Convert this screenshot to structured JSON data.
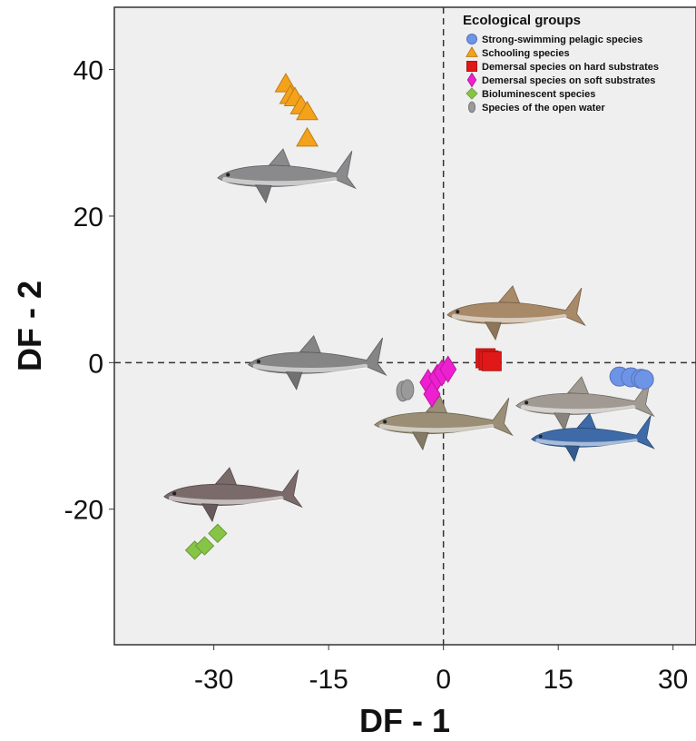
{
  "chart_data": {
    "type": "scatter",
    "xlabel": "DF - 1",
    "ylabel": "DF - 2",
    "xlim": [
      -43,
      33
    ],
    "ylim": [
      -38.5,
      48.5
    ],
    "xticks": [
      -30,
      -15,
      0,
      15,
      30
    ],
    "yticks": [
      40,
      20,
      0,
      -20
    ],
    "reference_lines": {
      "x": 0,
      "y": 0,
      "style": "dashed"
    },
    "grid": false,
    "plot_background": "#efefef",
    "legend": {
      "title": "Ecological groups",
      "placement": "top-right"
    },
    "series": [
      {
        "name": "Strong-swimming pelagic species",
        "marker": "circle",
        "color": "#6e94e8",
        "points": [
          [
            23.0,
            -1.9
          ],
          [
            24.5,
            -2.0
          ],
          [
            25.8,
            -2.2
          ],
          [
            26.2,
            -2.3
          ]
        ]
      },
      {
        "name": "Schooling species",
        "marker": "triangle",
        "color": "#f4a21b",
        "points": [
          [
            -20.6,
            38.0
          ],
          [
            -20.0,
            36.4
          ],
          [
            -19.4,
            36.1
          ],
          [
            -18.6,
            35.0
          ],
          [
            -17.8,
            34.2
          ],
          [
            -17.8,
            30.6
          ]
        ]
      },
      {
        "name": "Demersal species on hard substrates",
        "marker": "square",
        "color": "#e01818",
        "points": [
          [
            5.5,
            0.6
          ],
          [
            5.9,
            0.3
          ],
          [
            6.3,
            0.2
          ]
        ]
      },
      {
        "name": "Demersal species on soft substrates",
        "marker": "diamond",
        "color": "#ee1fd0",
        "points": [
          [
            -2.0,
            -2.7
          ],
          [
            -1.5,
            -4.3
          ],
          [
            -0.8,
            -2.0
          ],
          [
            -0.2,
            -1.4
          ],
          [
            0.6,
            -0.9
          ]
        ]
      },
      {
        "name": "Bioluminescent species",
        "marker": "diamond",
        "color": "#86c446",
        "points": [
          [
            -32.5,
            -25.6
          ],
          [
            -31.2,
            -25.0
          ],
          [
            -29.5,
            -23.3
          ]
        ]
      },
      {
        "name": "Species of the open water",
        "marker": "ellipse",
        "color": "#9a9a9a",
        "points": [
          [
            -5.3,
            -3.9
          ],
          [
            -4.7,
            -3.7
          ]
        ]
      }
    ],
    "illustrations": [
      {
        "name": "shark-illustration-schooling",
        "color": "#8a8a8c",
        "x": -20.5,
        "y": 25.5,
        "length": 18
      },
      {
        "name": "shark-illustration-demersal-hard",
        "color": "#a88a68",
        "x": 9.5,
        "y": 6.8,
        "length": 18
      },
      {
        "name": "shark-illustration-open-water",
        "color": "#858585",
        "x": -16.5,
        "y": 0.0,
        "length": 18
      },
      {
        "name": "shark-illustration-demersal-soft",
        "color": "#9a8e76",
        "x": 0.0,
        "y": -8.2,
        "length": 18
      },
      {
        "name": "shark-illustration-pelagic-grey",
        "color": "#a09a92",
        "x": 18.5,
        "y": -5.6,
        "length": 18
      },
      {
        "name": "shark-illustration-pelagic-blue",
        "color": "#3e6ba8",
        "x": 19.5,
        "y": -10.2,
        "length": 16
      },
      {
        "name": "shark-illustration-bioluminescent",
        "color": "#7a6a6a",
        "x": -27.5,
        "y": -18.0,
        "length": 18
      }
    ]
  }
}
